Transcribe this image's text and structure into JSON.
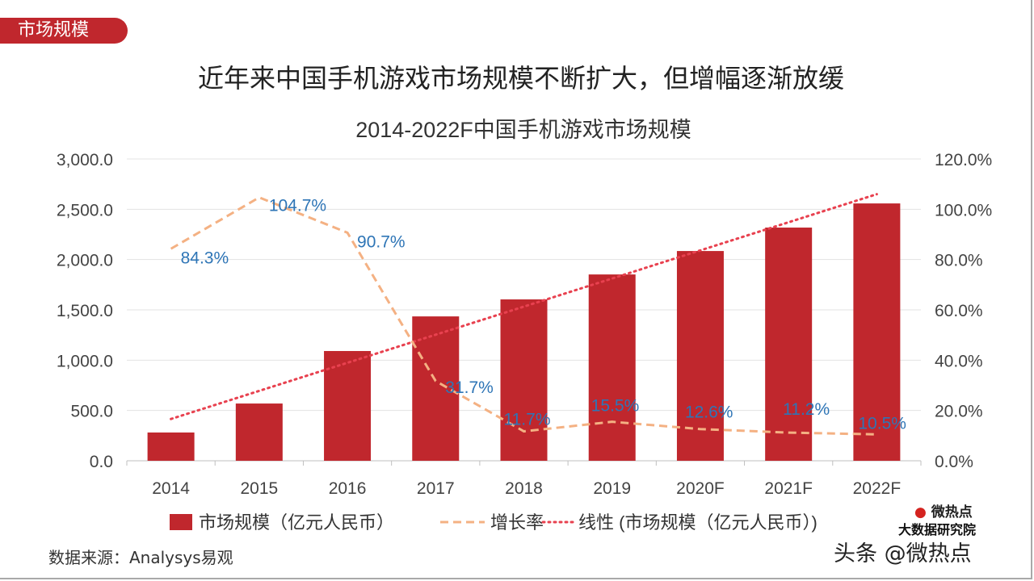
{
  "tag": "市场规模",
  "headline": "近年来中国手机游戏市场规模不断扩大，但增幅逐渐放缓",
  "source": "数据来源：Analysys易观",
  "watermark": {
    "brand": "微热点",
    "institute": "大数据研究院",
    "account": "头条 @微热点"
  },
  "chart_data": {
    "type": "bar+line",
    "title": "2014-2022F中国手机游戏市场规模",
    "categories": [
      "2014",
      "2015",
      "2016",
      "2017",
      "2018",
      "2019",
      "2020F",
      "2021F",
      "2022F"
    ],
    "series": [
      {
        "name": "市场规模（亿元人民币）",
        "type": "bar",
        "axis": "left",
        "color": "#c0272d",
        "values": [
          281,
          569,
          1091,
          1435,
          1604,
          1852,
          2085,
          2318,
          2558
        ]
      },
      {
        "name": "增长率",
        "type": "line",
        "style": "dashed",
        "axis": "right",
        "color": "#f4b183",
        "values": [
          84.3,
          104.7,
          90.7,
          31.7,
          11.7,
          15.5,
          12.6,
          11.2,
          10.5
        ],
        "labels": [
          "84.3%",
          "104.7%",
          "90.7%",
          "31.7%",
          "11.7%",
          "15.5%",
          "12.6%",
          "11.2%",
          "10.5%"
        ],
        "label_color": "#2e75b6"
      },
      {
        "name": "线性 (市场规模（亿元人民币）)",
        "type": "trendline",
        "style": "dotted",
        "axis": "left",
        "color": "#e8414f"
      }
    ],
    "y_left": {
      "range": [
        0,
        3000
      ],
      "ticks": [
        "0.0",
        "500.0",
        "1,000.0",
        "1,500.0",
        "2,000.0",
        "2,500.0",
        "3,000.0"
      ]
    },
    "y_right": {
      "range": [
        0,
        120
      ],
      "ticks": [
        "0.0%",
        "20.0%",
        "40.0%",
        "60.0%",
        "80.0%",
        "100.0%",
        "120.0%"
      ]
    },
    "grid": true,
    "legend": "bottom"
  }
}
